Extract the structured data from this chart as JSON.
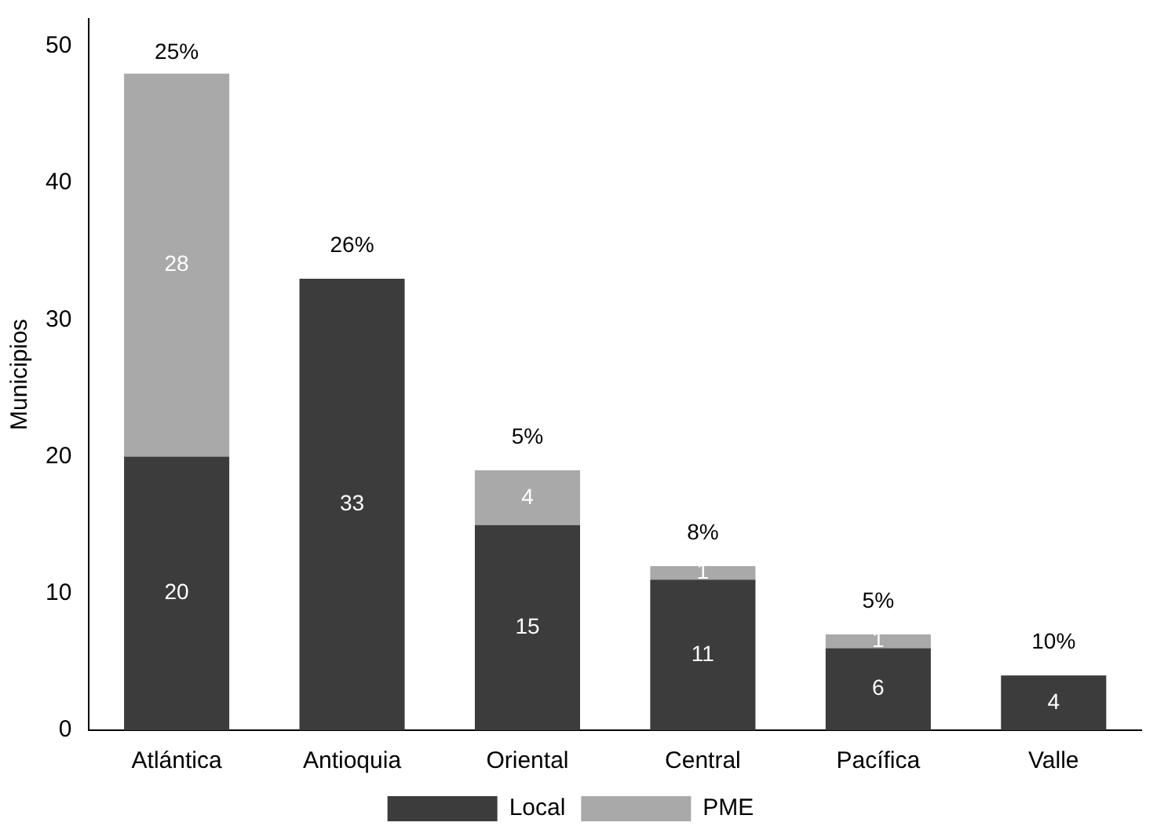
{
  "chart_data": {
    "type": "bar",
    "stacked": true,
    "ylabel": "Municipios",
    "categories": [
      "Atlántica",
      "Antioquia",
      "Oriental",
      "Central",
      "Pacífica",
      "Valle"
    ],
    "series": [
      {
        "name": "Local",
        "color": "#3c3c3c",
        "values": [
          20,
          33,
          15,
          11,
          6,
          4
        ],
        "value_labels": [
          "20",
          "33",
          "15",
          "11",
          "6",
          "4"
        ]
      },
      {
        "name": "PME",
        "color": "#a9a9a9",
        "values": [
          28,
          null,
          4,
          1,
          1,
          null
        ],
        "value_labels": [
          "28",
          null,
          "4",
          "1",
          "1",
          null
        ]
      }
    ],
    "annotations": [
      {
        "text": "25%",
        "x": "Atlántica",
        "y": 48
      },
      {
        "text": "26%",
        "x": "Antioquia",
        "y": 33
      },
      {
        "text": "5%",
        "x": "Oriental",
        "y": 19
      },
      {
        "text": "8%",
        "x": "Central",
        "y": 12
      },
      {
        "text": "5%",
        "x": "Pacífica",
        "y": 7
      },
      {
        "text": "10%",
        "x": "Valle",
        "y": 4
      }
    ],
    "ylim": [
      0,
      52
    ],
    "yticks": [
      0,
      10,
      20,
      30,
      40,
      50
    ],
    "grid": false,
    "legend": "bottom"
  }
}
